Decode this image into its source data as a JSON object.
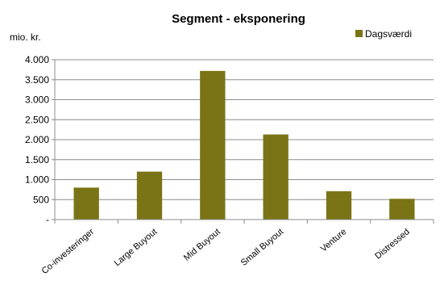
{
  "chart_data": {
    "type": "bar",
    "title": "Segment - eksponering",
    "unit_label": "mio. kr.",
    "xlabel": "",
    "ylabel": "",
    "categories": [
      "Co-investeringer",
      "Large Buyout",
      "Mid Buyout",
      "Small Buyout",
      "Venture",
      "Distressed"
    ],
    "series": [
      {
        "name": "Dagsværdi",
        "values": [
          800,
          1200,
          3720,
          2130,
          710,
          520
        ],
        "color": "#7a7416"
      }
    ],
    "ylim": [
      0,
      4000
    ],
    "yticks": [
      0,
      500,
      1000,
      1500,
      2000,
      2500,
      3000,
      3500,
      4000
    ],
    "ytick_labels": [
      "-",
      "500",
      "1.000",
      "1.500",
      "2.000",
      "2.500",
      "3.000",
      "3.500",
      "4.000"
    ],
    "grid": true,
    "legend_position": "top-right"
  }
}
